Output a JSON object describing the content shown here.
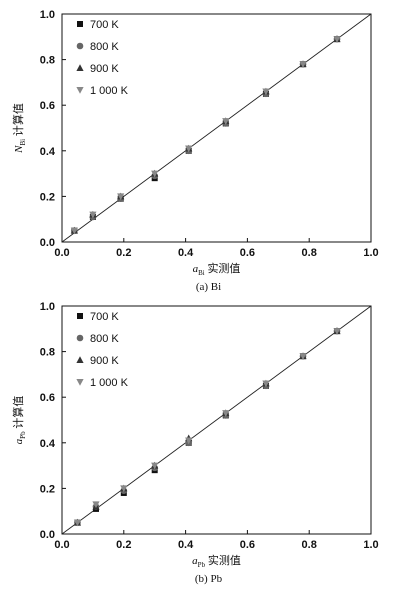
{
  "chart_data": [
    {
      "type": "scatter",
      "caption": "(a) Bi",
      "xlabel": {
        "main": "a",
        "sub": "Bi",
        "suffix": " 实测值"
      },
      "ylabel": {
        "main": "N",
        "sub": "Bi",
        "suffix": " 计算值"
      },
      "xlim": [
        0.0,
        1.0
      ],
      "ylim": [
        0.0,
        1.0
      ],
      "xticks": [
        "0.0",
        "0.2",
        "0.4",
        "0.6",
        "0.8",
        "1.0"
      ],
      "yticks": [
        "0.0",
        "0.2",
        "0.4",
        "0.6",
        "0.8",
        "1.0"
      ],
      "reference_line": [
        [
          0,
          0
        ],
        [
          1,
          1
        ]
      ],
      "legend_position": "top-left",
      "series": [
        {
          "name": "700 K",
          "marker": "square",
          "color": "#111111",
          "x": [
            0.04,
            0.1,
            0.19,
            0.3,
            0.41,
            0.53,
            0.66,
            0.78,
            0.89
          ],
          "y": [
            0.05,
            0.11,
            0.19,
            0.28,
            0.4,
            0.52,
            0.65,
            0.78,
            0.89
          ]
        },
        {
          "name": "800 K",
          "marker": "circle",
          "color": "#666666",
          "x": [
            0.04,
            0.1,
            0.19,
            0.3,
            0.41,
            0.53,
            0.66,
            0.78,
            0.89
          ],
          "y": [
            0.05,
            0.11,
            0.19,
            0.29,
            0.4,
            0.52,
            0.65,
            0.78,
            0.89
          ]
        },
        {
          "name": "900 K",
          "marker": "triangle-up",
          "color": "#333333",
          "x": [
            0.04,
            0.1,
            0.19,
            0.3,
            0.41,
            0.53,
            0.66,
            0.78,
            0.89
          ],
          "y": [
            0.05,
            0.12,
            0.2,
            0.3,
            0.41,
            0.53,
            0.66,
            0.78,
            0.89
          ]
        },
        {
          "name": "1 000 K",
          "marker": "triangle-down",
          "color": "#888888",
          "x": [
            0.04,
            0.1,
            0.19,
            0.3,
            0.41,
            0.53,
            0.66,
            0.78,
            0.89
          ],
          "y": [
            0.05,
            0.12,
            0.2,
            0.3,
            0.41,
            0.53,
            0.66,
            0.78,
            0.89
          ]
        }
      ]
    },
    {
      "type": "scatter",
      "caption": "(b) Pb",
      "xlabel": {
        "main": "a",
        "sub": "Pb",
        "suffix": " 实测值"
      },
      "ylabel": {
        "main": "a",
        "sub": "Pb",
        "suffix": " 计算值"
      },
      "xlim": [
        0.0,
        1.0
      ],
      "ylim": [
        0.0,
        1.0
      ],
      "xticks": [
        "0.0",
        "0.2",
        "0.4",
        "0.6",
        "0.8",
        "1.0"
      ],
      "yticks": [
        "0.0",
        "0.2",
        "0.4",
        "0.6",
        "0.8",
        "1.0"
      ],
      "reference_line": [
        [
          0,
          0
        ],
        [
          1,
          1
        ]
      ],
      "legend_position": "top-left",
      "series": [
        {
          "name": "700 K",
          "marker": "square",
          "color": "#111111",
          "x": [
            0.05,
            0.11,
            0.2,
            0.3,
            0.41,
            0.53,
            0.66,
            0.78,
            0.89
          ],
          "y": [
            0.05,
            0.11,
            0.18,
            0.28,
            0.4,
            0.52,
            0.65,
            0.78,
            0.89
          ]
        },
        {
          "name": "800 K",
          "marker": "circle",
          "color": "#666666",
          "x": [
            0.05,
            0.11,
            0.2,
            0.3,
            0.41,
            0.53,
            0.66,
            0.78,
            0.89
          ],
          "y": [
            0.05,
            0.12,
            0.19,
            0.29,
            0.4,
            0.52,
            0.65,
            0.78,
            0.89
          ]
        },
        {
          "name": "900 K",
          "marker": "triangle-up",
          "color": "#333333",
          "x": [
            0.05,
            0.11,
            0.2,
            0.3,
            0.41,
            0.53,
            0.66,
            0.78,
            0.89
          ],
          "y": [
            0.05,
            0.12,
            0.2,
            0.3,
            0.42,
            0.53,
            0.66,
            0.78,
            0.89
          ]
        },
        {
          "name": "1 000 K",
          "marker": "triangle-down",
          "color": "#888888",
          "x": [
            0.05,
            0.11,
            0.2,
            0.3,
            0.41,
            0.53,
            0.66,
            0.78,
            0.89
          ],
          "y": [
            0.05,
            0.13,
            0.2,
            0.3,
            0.41,
            0.53,
            0.66,
            0.78,
            0.89
          ]
        }
      ]
    }
  ]
}
